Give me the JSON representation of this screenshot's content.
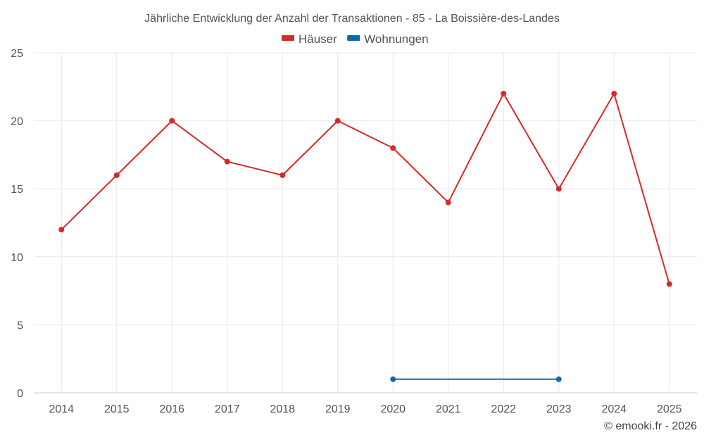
{
  "chart_data": {
    "type": "line",
    "title": "Jährliche Entwicklung der Anzahl der Transaktionen - 85 - La Boissière-des-Landes",
    "categories": [
      "2014",
      "2015",
      "2016",
      "2017",
      "2018",
      "2019",
      "2020",
      "2021",
      "2022",
      "2023",
      "2024",
      "2025"
    ],
    "series": [
      {
        "name": "Häuser",
        "color": "#d42a2a",
        "values": [
          12,
          16,
          20,
          17,
          16,
          20,
          18,
          14,
          22,
          15,
          22,
          8
        ]
      },
      {
        "name": "Wohnungen",
        "color": "#0d6aa8",
        "values": [
          null,
          null,
          null,
          null,
          null,
          null,
          1,
          null,
          null,
          1,
          null,
          null
        ]
      }
    ],
    "ylim": [
      0,
      25
    ],
    "yticks": [
      0,
      5,
      10,
      15,
      20,
      25
    ],
    "xlabel": "",
    "ylabel": "",
    "grid": true,
    "legend_position": "top-center"
  },
  "credit": "© emooki.fr - 2026"
}
